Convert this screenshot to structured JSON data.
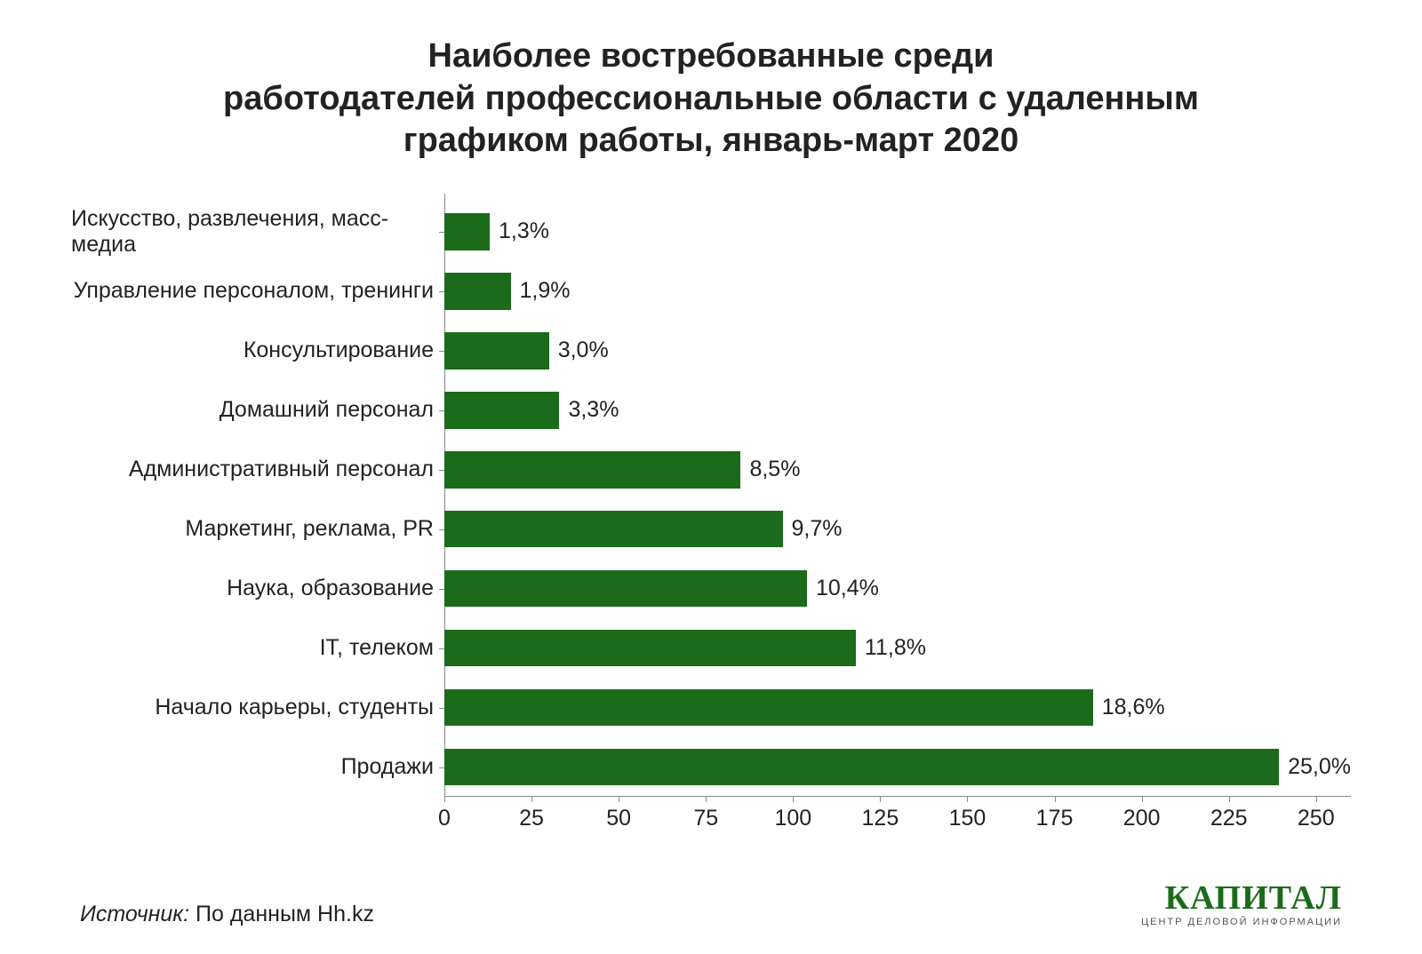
{
  "chart": {
    "type": "bar-horizontal",
    "title": "Наиболее востребованные среди\nработодателей профессиональные области с удаленным\nграфиком работы, январь-март 2020",
    "title_fontsize": 38,
    "title_color": "#222222",
    "background_color": "#ffffff",
    "bar_color": "#1b6b1b",
    "axis_color": "#888888",
    "label_color": "#222222",
    "label_fontsize": 25,
    "xlim": [
      0,
      260
    ],
    "xtick_step": 25,
    "xticks": [
      0,
      25,
      50,
      75,
      100,
      125,
      150,
      175,
      200,
      225,
      250
    ],
    "bar_height_ratio": 0.62,
    "bars": [
      {
        "category": "Искусство, развлечения, масс-медиа",
        "value": 13,
        "value_label": "1,3%"
      },
      {
        "category": "Управление персоналом, тренинги",
        "value": 19,
        "value_label": "1,9%"
      },
      {
        "category": "Консультирование",
        "value": 30,
        "value_label": "3,0%"
      },
      {
        "category": "Домашний персонал",
        "value": 33,
        "value_label": "3,3%"
      },
      {
        "category": "Административный персонал",
        "value": 85,
        "value_label": "8,5%"
      },
      {
        "category": "Маркетинг, реклама, PR",
        "value": 97,
        "value_label": "9,7%"
      },
      {
        "category": "Наука, образование",
        "value": 104,
        "value_label": "10,4%"
      },
      {
        "category": "IT, телеком",
        "value": 118,
        "value_label": "11,8%"
      },
      {
        "category": "Начало карьеры, студенты",
        "value": 186,
        "value_label": "18,6%"
      },
      {
        "category": "Продажи",
        "value": 250,
        "value_label": "25,0%"
      }
    ]
  },
  "footer": {
    "source_prefix": "Источник: ",
    "source_text": "По данным Hh.kz"
  },
  "brand": {
    "name": "КАПИТАЛ",
    "tagline": "ЦЕНТР ДЕЛОВОЙ ИНФОРМАЦИИ",
    "color": "#1b6b1b"
  }
}
